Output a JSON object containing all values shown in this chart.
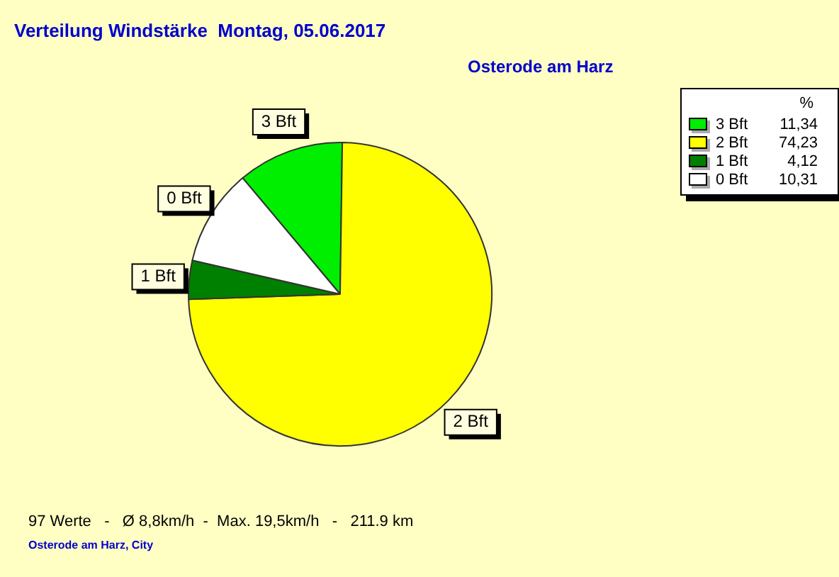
{
  "chart_data": {
    "type": "pie",
    "title": "Verteilung Windstärke  Montag, 05.06.2017",
    "subtitle": "Osterode am Harz",
    "legend_title": "%",
    "categories": [
      "3 Bft",
      "2 Bft",
      "1 Bft",
      "0 Bft"
    ],
    "values": [
      11.34,
      74.23,
      4.12,
      10.31
    ],
    "value_labels": [
      "11,34",
      "74,23",
      "4,12",
      "10,31"
    ],
    "colors": [
      "#00ee00",
      "#ffff00",
      "#008000",
      "#ffffff"
    ],
    "legend": "top right",
    "annotations": [
      "97 Werte   -   Ø 8,8km/h  -  Max. 19,5km/h   -   211.9 km",
      "Osterode am Harz, City"
    ]
  }
}
